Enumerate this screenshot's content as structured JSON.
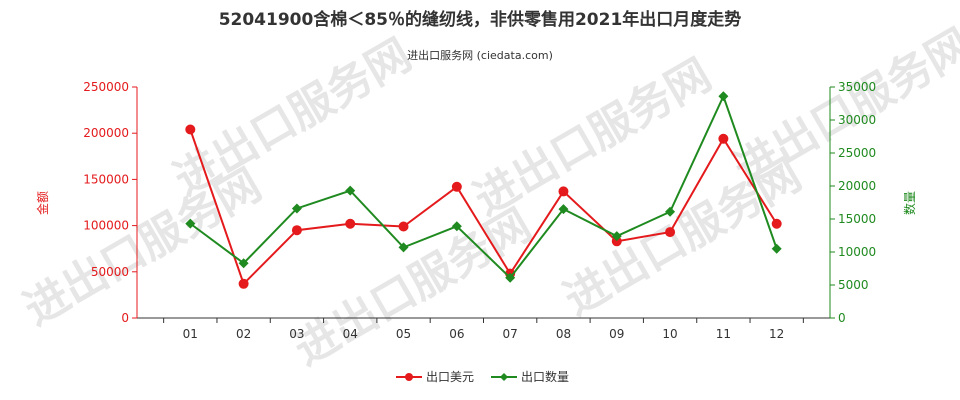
{
  "chart_data": {
    "type": "line",
    "title": "52041900含棉＜85％的缝纫线，非供零售用2021年出口月度走势",
    "subtitle": "进出口服务网 (ciedata.com)",
    "categories": [
      "01",
      "02",
      "03",
      "04",
      "05",
      "06",
      "07",
      "08",
      "09",
      "10",
      "11",
      "12"
    ],
    "y_left": {
      "label": "金额",
      "range": [
        0,
        250000
      ],
      "ticks": [
        "0",
        "50000",
        "100000",
        "150000",
        "200000",
        "250000"
      ],
      "color": "#e41a1c"
    },
    "y_right": {
      "label": "数量",
      "range": [
        0,
        35000
      ],
      "ticks": [
        "0",
        "5000",
        "10000",
        "15000",
        "20000",
        "25000",
        "30000",
        "35000"
      ],
      "color": "#1f8a1f"
    },
    "series": [
      {
        "name": "出口美元",
        "axis": "left",
        "color": "#e41a1c",
        "values": [
          204000,
          37000,
          95000,
          102000,
          99000,
          142000,
          48000,
          137000,
          83000,
          93000,
          194000,
          102000
        ]
      },
      {
        "name": "出口数量",
        "axis": "right",
        "color": "#1f8a1f",
        "values": [
          14300,
          8300,
          16600,
          19300,
          10700,
          13900,
          6100,
          16500,
          12400,
          16100,
          33600,
          10500
        ]
      }
    ],
    "legend_position": "bottom-center",
    "grid": false,
    "watermark": "进出口服务网"
  }
}
